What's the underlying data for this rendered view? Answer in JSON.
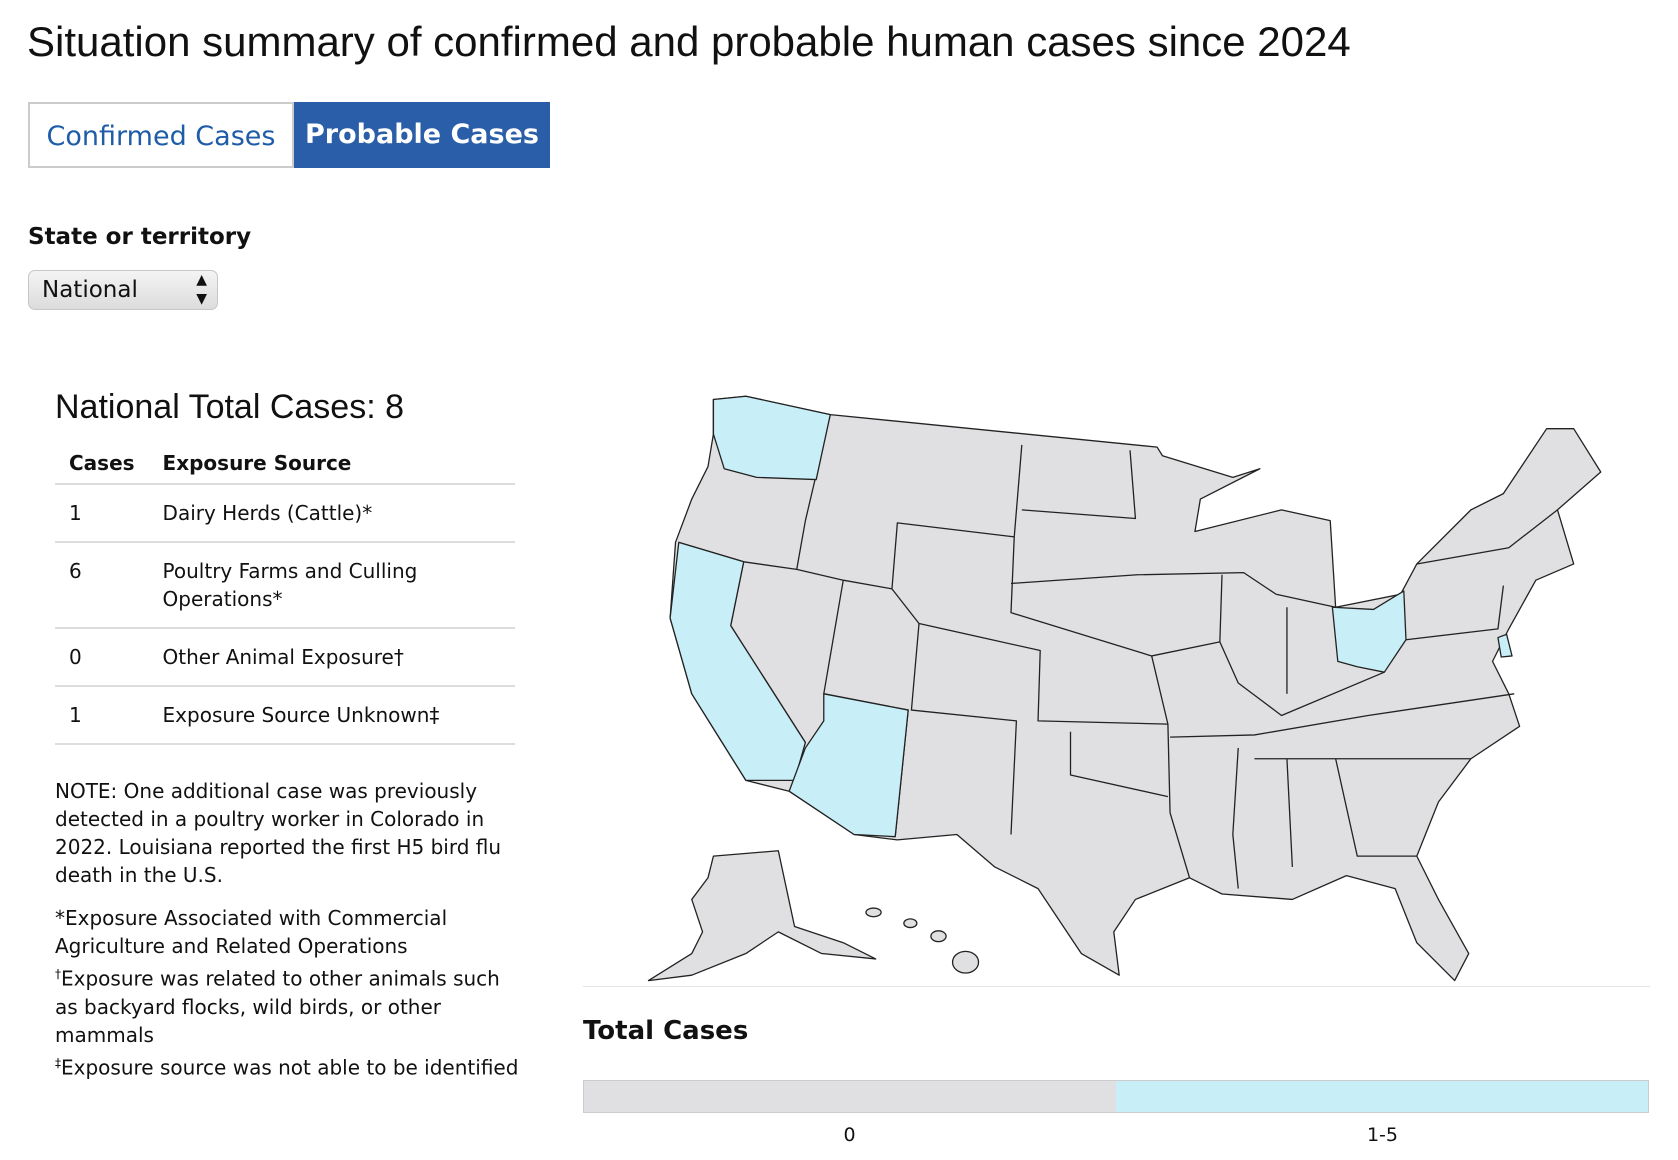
{
  "header": {
    "title": "Situation summary of confirmed and probable human cases since 2024"
  },
  "tabs": [
    "Confirmed Cases",
    "Probable Cases"
  ],
  "filter": {
    "label": "State or territory",
    "value": "National"
  },
  "summary": {
    "title": "National Total Cases: 8",
    "table": {
      "columns": [
        "Cases",
        "Exposure Source"
      ],
      "rows": [
        [
          1,
          "Dairy Herds (Cattle)*"
        ],
        [
          6,
          "Poultry Farms and Culling Operations*"
        ],
        [
          0,
          "Other Animal Exposure†"
        ],
        [
          1,
          "Exposure Source Unknown‡"
        ]
      ]
    },
    "note": "NOTE: One additional case was previously detected in a poultry worker in Colorado in 2022. Louisiana reported the first H5 bird flu death in the U.S.",
    "footnotes": [
      {
        "mark": "*",
        "text": "Exposure Associated with Commercial Agriculture and Related Operations"
      },
      {
        "mark": "†",
        "text": "Exposure was related to other animals such as backyard flocks, wild birds, or other mammals"
      },
      {
        "mark": "‡",
        "text": "Exposure source was not able to be identified"
      }
    ]
  },
  "legend": {
    "title": "Total Cases",
    "items": [
      {
        "label": "0",
        "color": "#e0e0e2"
      },
      {
        "label": "1-5",
        "color": "#c8eef8"
      }
    ]
  }
}
